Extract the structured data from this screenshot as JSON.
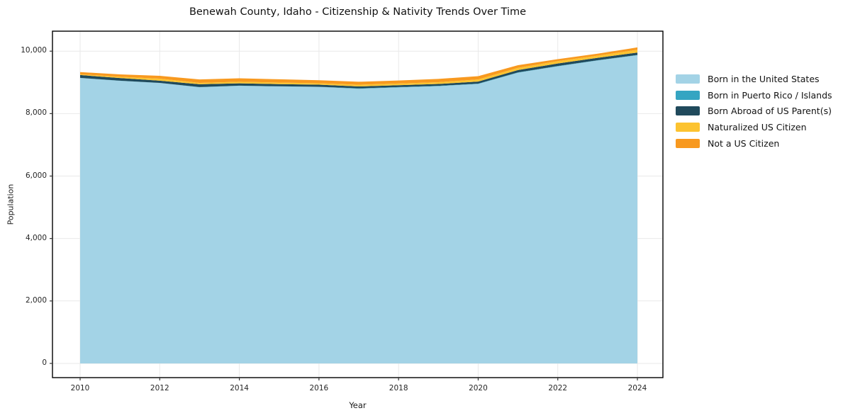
{
  "chart_data": {
    "type": "area",
    "stacked": true,
    "title": "Benewah County, Idaho - Citizenship & Nativity Trends Over Time",
    "xlabel": "Year",
    "ylabel": "Population",
    "x": [
      2010,
      2011,
      2012,
      2013,
      2014,
      2015,
      2016,
      2017,
      2018,
      2019,
      2020,
      2021,
      2022,
      2023,
      2024
    ],
    "series": [
      {
        "name": "Born in the United States",
        "color": "#a3d3e6",
        "values": [
          9140,
          9050,
          8980,
          8845,
          8890,
          8870,
          8855,
          8795,
          8840,
          8880,
          8950,
          9310,
          9515,
          9700,
          9870
        ]
      },
      {
        "name": "Born in Puerto Rico / Islands",
        "color": "#35a5c2",
        "values": [
          5,
          5,
          5,
          5,
          5,
          5,
          5,
          15,
          10,
          10,
          10,
          10,
          10,
          10,
          10
        ]
      },
      {
        "name": "Born Abroad of US Parent(s)",
        "color": "#204a5c",
        "values": [
          90,
          85,
          70,
          90,
          75,
          70,
          68,
          60,
          60,
          60,
          65,
          75,
          80,
          75,
          75
        ]
      },
      {
        "name": "Naturalized US Citizen",
        "color": "#fcc330",
        "values": [
          25,
          40,
          65,
          45,
          50,
          50,
          45,
          55,
          55,
          55,
          70,
          70,
          75,
          70,
          90
        ]
      },
      {
        "name": "Not a US Citizen",
        "color": "#f8991f",
        "values": [
          70,
          75,
          90,
          110,
          110,
          105,
          95,
          95,
          95,
          105,
          105,
          85,
          65,
          65,
          75
        ]
      }
    ],
    "x_ticks": [
      {
        "value": 2010,
        "label": "2010"
      },
      {
        "value": 2012,
        "label": "2012"
      },
      {
        "value": 2014,
        "label": "2014"
      },
      {
        "value": 2016,
        "label": "2016"
      },
      {
        "value": 2018,
        "label": "2018"
      },
      {
        "value": 2020,
        "label": "2020"
      },
      {
        "value": 2022,
        "label": "2022"
      },
      {
        "value": 2024,
        "label": "2024"
      }
    ],
    "y_ticks": [
      {
        "value": 0,
        "label": "0"
      },
      {
        "value": 2000,
        "label": "2,000"
      },
      {
        "value": 4000,
        "label": "4,000"
      },
      {
        "value": 6000,
        "label": "6,000"
      },
      {
        "value": 8000,
        "label": "8,000"
      },
      {
        "value": 10000,
        "label": "10,000"
      }
    ],
    "xlim": [
      2009.305,
      2024.641
    ],
    "ylim": [
      -455,
      10640
    ],
    "grid": true,
    "grid_color": "#e9e9e9",
    "frame_color": "#000000",
    "tick_color": "#333333",
    "legend_position": "right"
  }
}
